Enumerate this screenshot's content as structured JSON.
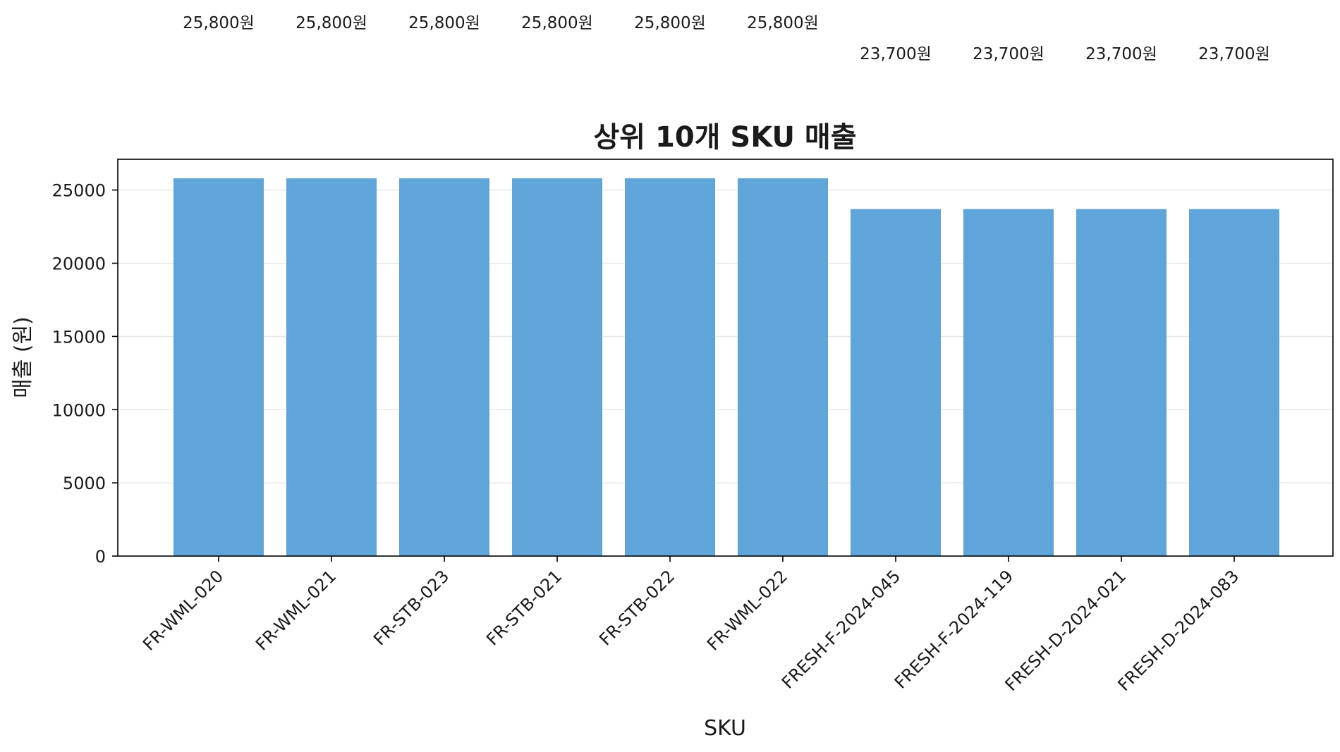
{
  "chart_data": {
    "type": "bar",
    "title": "상위 10개 SKU 매출",
    "xlabel": "SKU",
    "ylabel": "매출 (원)",
    "categories": [
      "FR-WML-020",
      "FR-WML-021",
      "FR-STB-023",
      "FR-STB-021",
      "FR-STB-022",
      "FR-WML-022",
      "FRESH-F-2024-045",
      "FRESH-F-2024-119",
      "FRESH-D-2024-021",
      "FRESH-D-2024-083"
    ],
    "values": [
      25800,
      25800,
      25800,
      25800,
      25800,
      25800,
      23700,
      23700,
      23700,
      23700
    ],
    "value_labels": [
      "25,800원",
      "25,800원",
      "25,800원",
      "25,800원",
      "25,800원",
      "25,800원",
      "23,700원",
      "23,700원",
      "23,700원",
      "23,700원"
    ],
    "ylim": [
      0,
      27100
    ],
    "yticks": [
      0,
      5000,
      10000,
      15000,
      20000,
      25000
    ],
    "grid": "y",
    "legend": "none",
    "bar_color": "#5fa5da",
    "grid_color": "#e6e6e6",
    "axis_color": "#000000"
  }
}
